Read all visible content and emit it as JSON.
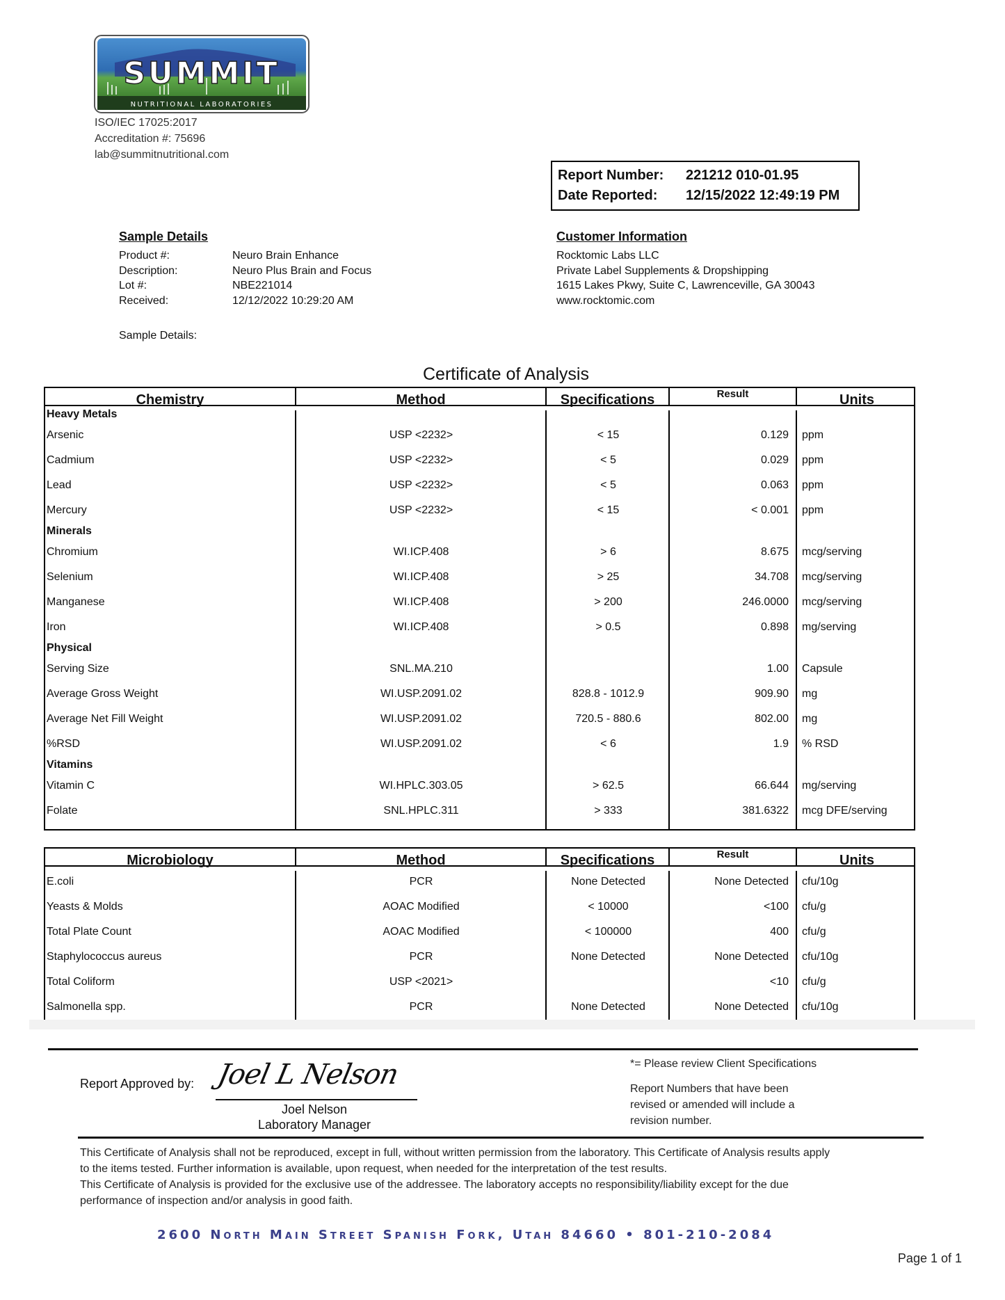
{
  "lab": {
    "logo_text": "SUMMIT",
    "logo_subtext": "NUTRITIONAL LABORATORIES",
    "iso": "ISO/IEC 17025:2017",
    "accreditation": "Accreditation #: 75696",
    "email": "lab@summitnutritional.com"
  },
  "report": {
    "number_label": "Report Number:",
    "number": "221212 010-01.95",
    "date_label": "Date Reported:",
    "date": "12/15/2022 12:49:19 PM"
  },
  "sample": {
    "heading": "Sample Details",
    "fields": [
      {
        "label": "Product #:",
        "value": "Neuro Brain Enhance"
      },
      {
        "label": "Description:",
        "value": "Neuro Plus Brain and Focus"
      },
      {
        "label": "Lot #:",
        "value": "NBE221014"
      },
      {
        "label": "Received:",
        "value": "12/12/2022 10:29:20 AM"
      }
    ],
    "details_label": "Sample Details:"
  },
  "customer": {
    "heading": "Customer Information",
    "lines": [
      "Rocktomic Labs LLC",
      "Private Label Supplements & Dropshipping",
      "1615 Lakes Pkwy, Suite C, Lawrenceville, GA 30043",
      "www.rocktomic.com"
    ]
  },
  "certificate_title": "Certificate of Analysis",
  "chemistry": {
    "headers": [
      "Chemistry",
      "Method",
      "Specifications",
      "Result",
      "Units"
    ],
    "groups": [
      {
        "name": "Heavy Metals",
        "rows": [
          [
            "Arsenic",
            "USP <2232>",
            "< 15",
            "0.129",
            "ppm"
          ],
          [
            "Cadmium",
            "USP <2232>",
            "< 5",
            "0.029",
            "ppm"
          ],
          [
            "Lead",
            "USP <2232>",
            "< 5",
            "0.063",
            "ppm"
          ],
          [
            "Mercury",
            "USP <2232>",
            "< 15",
            "< 0.001",
            "ppm"
          ]
        ]
      },
      {
        "name": "Minerals",
        "rows": [
          [
            "Chromium",
            "WI.ICP.408",
            "> 6",
            "8.675",
            "mcg/serving"
          ],
          [
            "Selenium",
            "WI.ICP.408",
            "> 25",
            "34.708",
            "mcg/serving"
          ],
          [
            "Manganese",
            "WI.ICP.408",
            "> 200",
            "246.0000",
            "mcg/serving"
          ],
          [
            "Iron",
            "WI.ICP.408",
            "> 0.5",
            "0.898",
            "mg/serving"
          ]
        ]
      },
      {
        "name": "Physical",
        "rows": [
          [
            "Serving Size",
            "SNL.MA.210",
            "",
            "1.00",
            "Capsule"
          ],
          [
            "Average Gross Weight",
            "WI.USP.2091.02",
            "828.8 - 1012.9",
            "909.90",
            "mg"
          ],
          [
            "Average Net Fill Weight",
            "WI.USP.2091.02",
            "720.5 - 880.6",
            "802.00",
            "mg"
          ],
          [
            "%RSD",
            "WI.USP.2091.02",
            "< 6",
            "1.9",
            "% RSD"
          ]
        ]
      },
      {
        "name": "Vitamins",
        "rows": [
          [
            "Vitamin C",
            "WI.HPLC.303.05",
            "> 62.5",
            "66.644",
            "mg/serving"
          ],
          [
            "Folate",
            "SNL.HPLC.311",
            "> 333",
            "381.6322",
            "mcg DFE/serving"
          ]
        ]
      }
    ]
  },
  "microbiology": {
    "headers": [
      "Microbiology",
      "Method",
      "Specifications",
      "Result",
      "Units"
    ],
    "rows": [
      [
        "E.coli",
        "PCR",
        "None Detected",
        "None Detected",
        "cfu/10g"
      ],
      [
        "Yeasts & Molds",
        "AOAC Modified",
        "< 10000",
        "<100",
        "cfu/g"
      ],
      [
        "Total Plate Count",
        "AOAC Modified",
        "< 100000",
        "400",
        "cfu/g"
      ],
      [
        "Staphylococcus aureus",
        "PCR",
        "None Detected",
        "None Detected",
        "cfu/10g"
      ],
      [
        "Total Coliform",
        "USP <2021>",
        "",
        "<10",
        "cfu/g"
      ],
      [
        "Salmonella spp.",
        "PCR",
        "None Detected",
        "None Detected",
        "cfu/10g"
      ]
    ]
  },
  "approval": {
    "label": "Report Approved by:",
    "signature": "Joel L Nelson",
    "name": "Joel Nelson",
    "title": "Laboratory Manager"
  },
  "notes": {
    "client_spec": "*= Please review Client Specifications",
    "revision": [
      "Report Numbers that have been",
      "revised or amended will include a",
      "revision number."
    ]
  },
  "disclaimer": [
    "This Certificate of Analysis shall not be reproduced, except in full, without written permission from the laboratory. This Certificate of Analysis results apply",
    "to the items tested. Further information is available, upon request, when needed for the interpretation of the test results.",
    "This Certificate of Analysis is provided for the exclusive use of the addressee. The laboratory accepts no responsibility/liability except for the due",
    "performance of inspection and/or analysis in good faith."
  ],
  "address": "2600 North Main Street Spanish Fork, Utah  84660 • 801-210-2084",
  "page": "Page 1 of 1",
  "colors": {
    "address": "#3a3f8a",
    "logo_sky": "#2f6db3",
    "logo_grass": "#3f8a2e"
  }
}
